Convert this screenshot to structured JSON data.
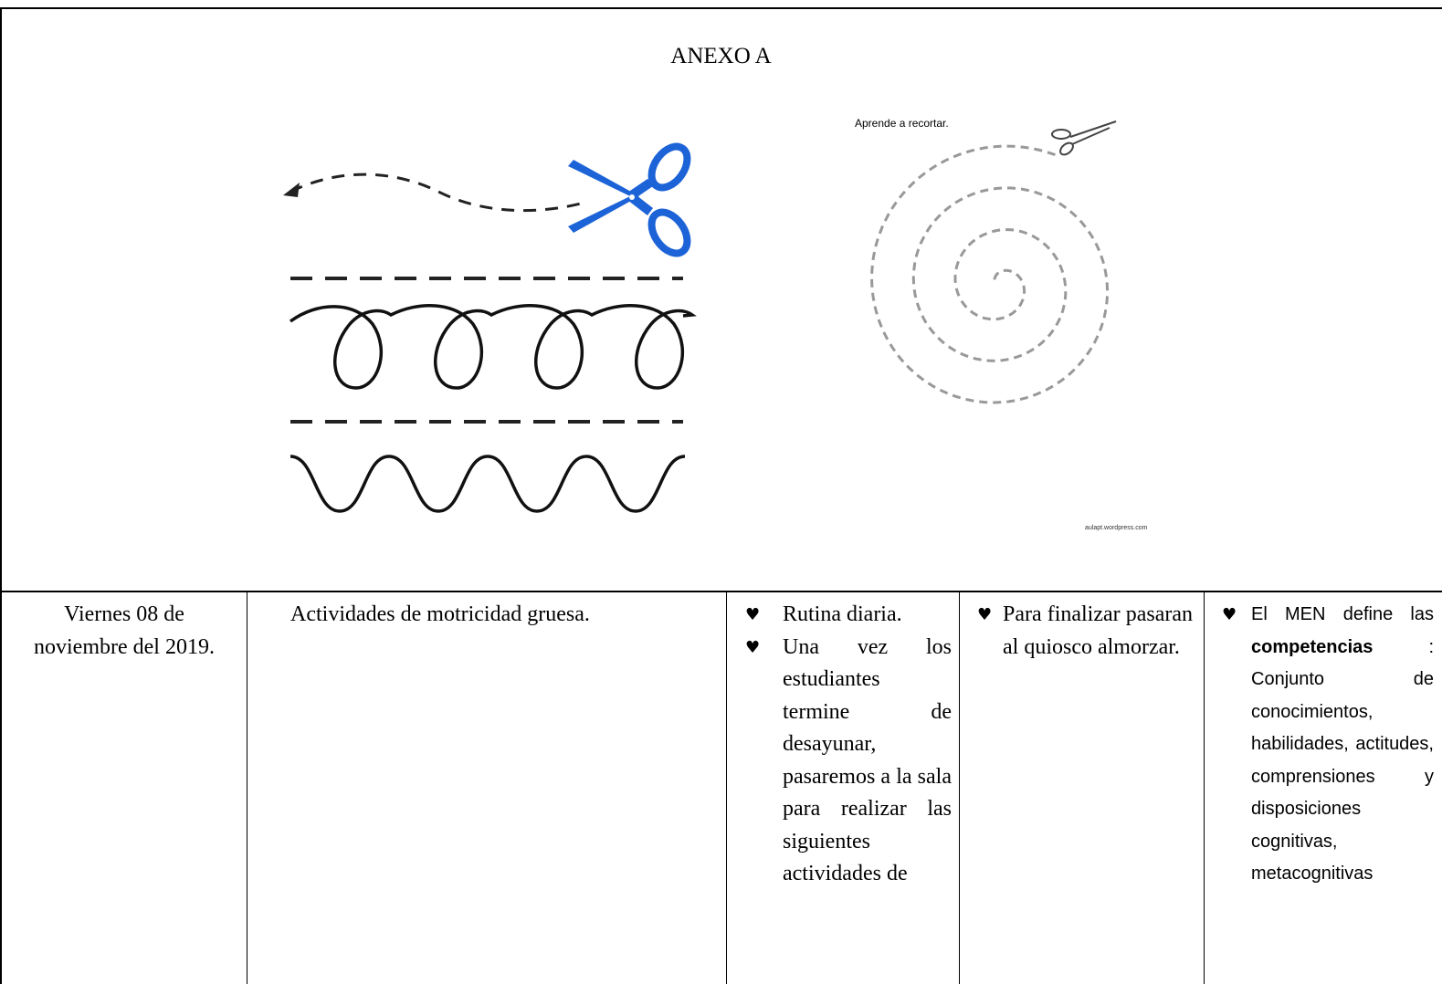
{
  "header": {
    "title": "ANEXO A"
  },
  "images": {
    "right_caption": "Aprende a recortar.",
    "right_credit": "aulapt.wordpress.com"
  },
  "table": {
    "date": "Viernes 08 de noviembre del 2019.",
    "activity": "Actividades de motricidad gruesa.",
    "routine": [
      "Rutina diaria.",
      "Una vez los estudiantes termine de desayunar, pasaremos a la sala para realizar las siguientes actividades de"
    ],
    "closing": [
      "Para finalizar pasaran al quiosco almorzar."
    ],
    "competencias": {
      "lead": "El MEN define las",
      "term": "competencias",
      "rest": ": Conjunto de conocimientos, habilidades, actitudes, comprensiones y disposiciones cognitivas, metacognitivas"
    }
  }
}
